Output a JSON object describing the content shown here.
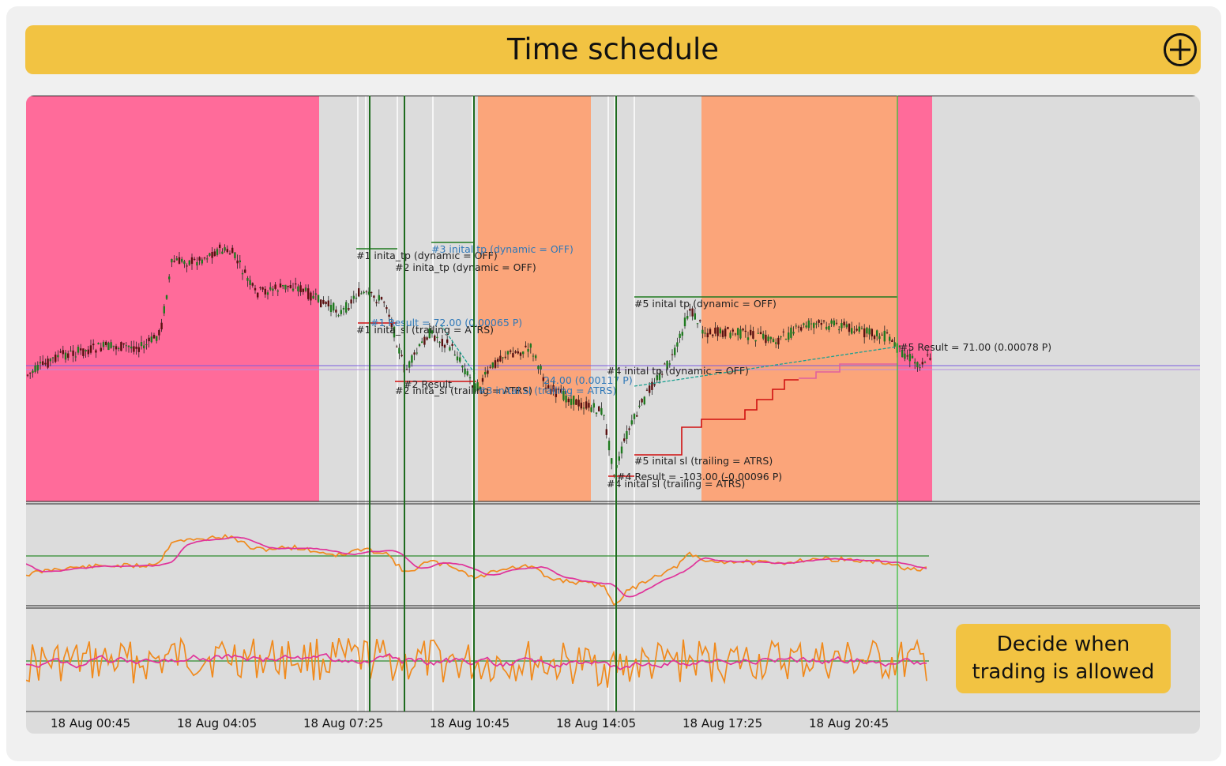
{
  "header": {
    "title": "Time schedule",
    "add_icon": "plus-circle-icon"
  },
  "callout": {
    "line1": "Decide when",
    "line2": "trading is allowed"
  },
  "colors": {
    "header_bg": "#f2c342",
    "blocked_zone": "#ff6b9a",
    "caution_zone": "#fba57a",
    "allowed_zone": "#dcdcdc",
    "fast_line": "#f08a1d",
    "slow_line": "#e0339a",
    "level_line": "#2e8b2e"
  },
  "chart_data": {
    "type": "line",
    "x_tick_labels": [
      "18 Aug 00:45",
      "18 Aug 04:05",
      "18 Aug 07:25",
      "18 Aug 10:45",
      "18 Aug 14:05",
      "18 Aug 17:25",
      "18 Aug 20:45"
    ],
    "annotations": [
      "#1 inita_tp (dynamic = OFF)",
      "#2 inita_tp (dynamic = OFF)",
      "#3 inital tp (dynamic = OFF)",
      "#1 Result = 72.00 (0.00065 P)",
      "#1 inita_sl (trailing = ATRS)",
      "#2 Result",
      "#2 inita_sl (trailing = ATRS)",
      "24.00 (0.00117 P)",
      "#3 inital sl (trailing = ATRS)",
      "#5 inital tp (dynamic = OFF)",
      "#4 inital tp (dynamic = OFF)",
      "#5 inital sl (trailing = ATRS)",
      "#4 Result = -103.00 (-0.00096 P)",
      "#4 inital sl (trailing = ATRS)",
      "#5 Result = 71.00 (0.00078 P)"
    ]
  }
}
